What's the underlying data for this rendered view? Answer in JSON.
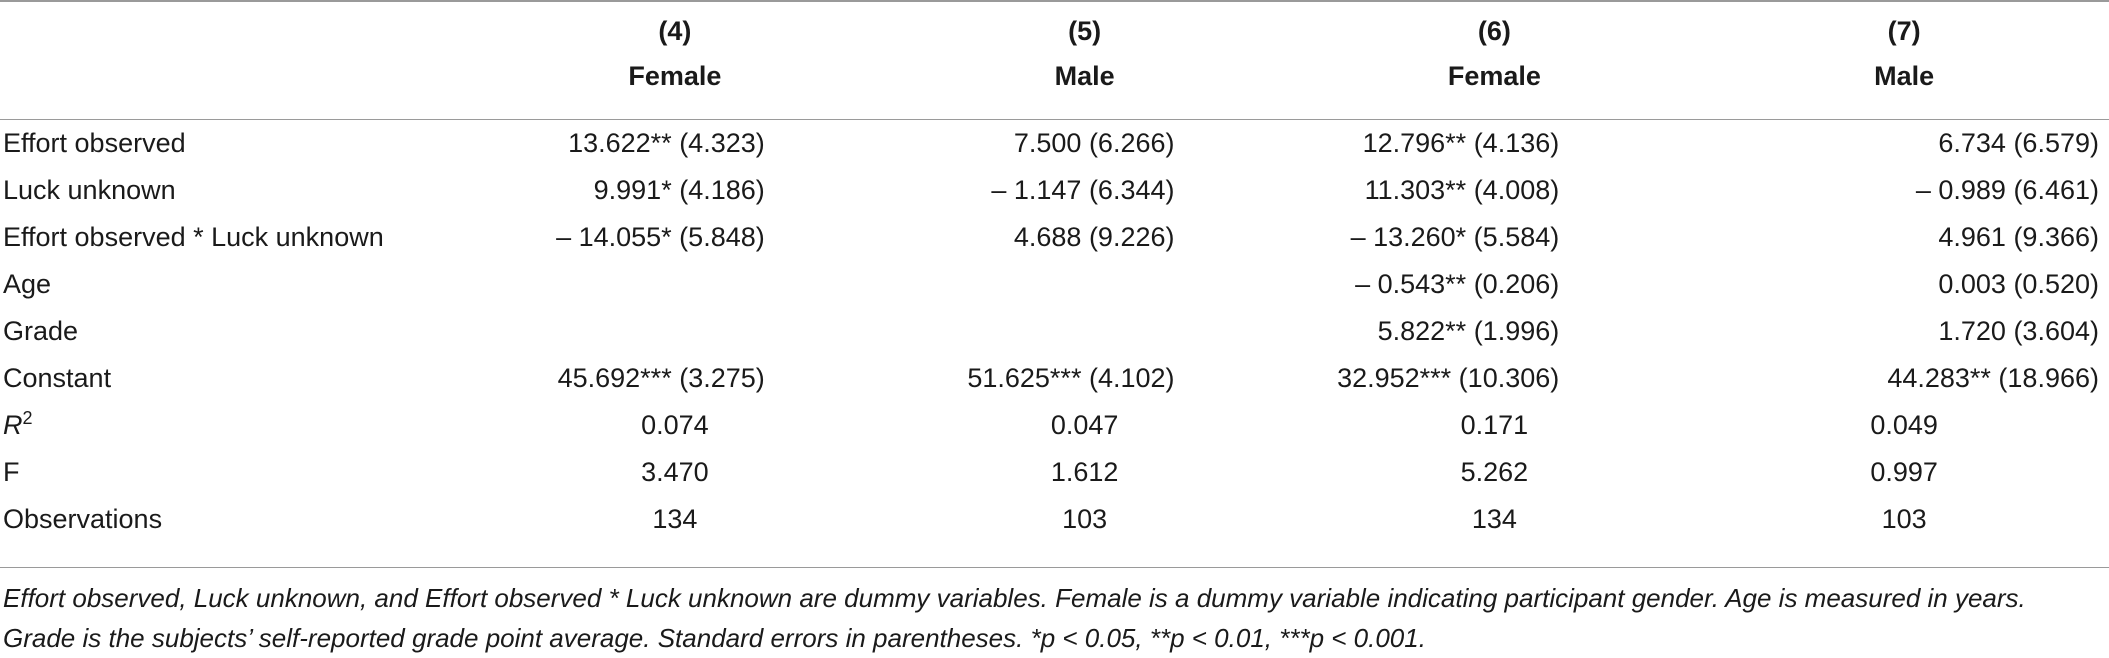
{
  "columns": [
    {
      "num": "(4)",
      "group": "Female"
    },
    {
      "num": "(5)",
      "group": "Male"
    },
    {
      "num": "(6)",
      "group": "Female"
    },
    {
      "num": "(7)",
      "group": "Male"
    }
  ],
  "coef_rows": [
    {
      "label": "Effort observed",
      "values": [
        "13.622** (4.323)",
        "7.500 (6.266)",
        "12.796** (4.136)",
        "6.734 (6.579)"
      ]
    },
    {
      "label": "Luck unknown",
      "values": [
        "9.991* (4.186)",
        "– 1.147 (6.344)",
        "11.303** (4.008)",
        "– 0.989 (6.461)"
      ]
    },
    {
      "label": "Effort observed * Luck unknown",
      "values": [
        "– 14.055* (5.848)",
        "4.688 (9.226)",
        "– 13.260* (5.584)",
        "4.961 (9.366)"
      ]
    },
    {
      "label": "Age",
      "values": [
        "",
        "",
        "– 0.543** (0.206)",
        "0.003 (0.520)"
      ]
    },
    {
      "label": "Grade",
      "values": [
        "",
        "",
        "5.822** (1.996)",
        "1.720 (3.604)"
      ]
    },
    {
      "label": "Constant",
      "values": [
        "45.692*** (3.275)",
        "51.625*** (4.102)",
        "32.952*** (10.306)",
        "44.283** (18.966)"
      ]
    }
  ],
  "stat_rows": [
    {
      "label": "R",
      "label_sup": "2",
      "values": [
        "0.074",
        "0.047",
        "0.171",
        "0.049"
      ]
    },
    {
      "label": "F",
      "values": [
        "3.470",
        "1.612",
        "5.262",
        "0.997"
      ]
    },
    {
      "label": "Observations",
      "values": [
        "134",
        "103",
        "134",
        "103"
      ]
    }
  ],
  "note": "Effort observed, Luck unknown, and Effort observed * Luck unknown are dummy variables. Female is a dummy variable indicating participant gender. Age is measured in years. Grade is the subjects’ self-reported grade point average. Standard errors in parentheses. *p < 0.05, **p < 0.01, ***p < 0.001."
}
